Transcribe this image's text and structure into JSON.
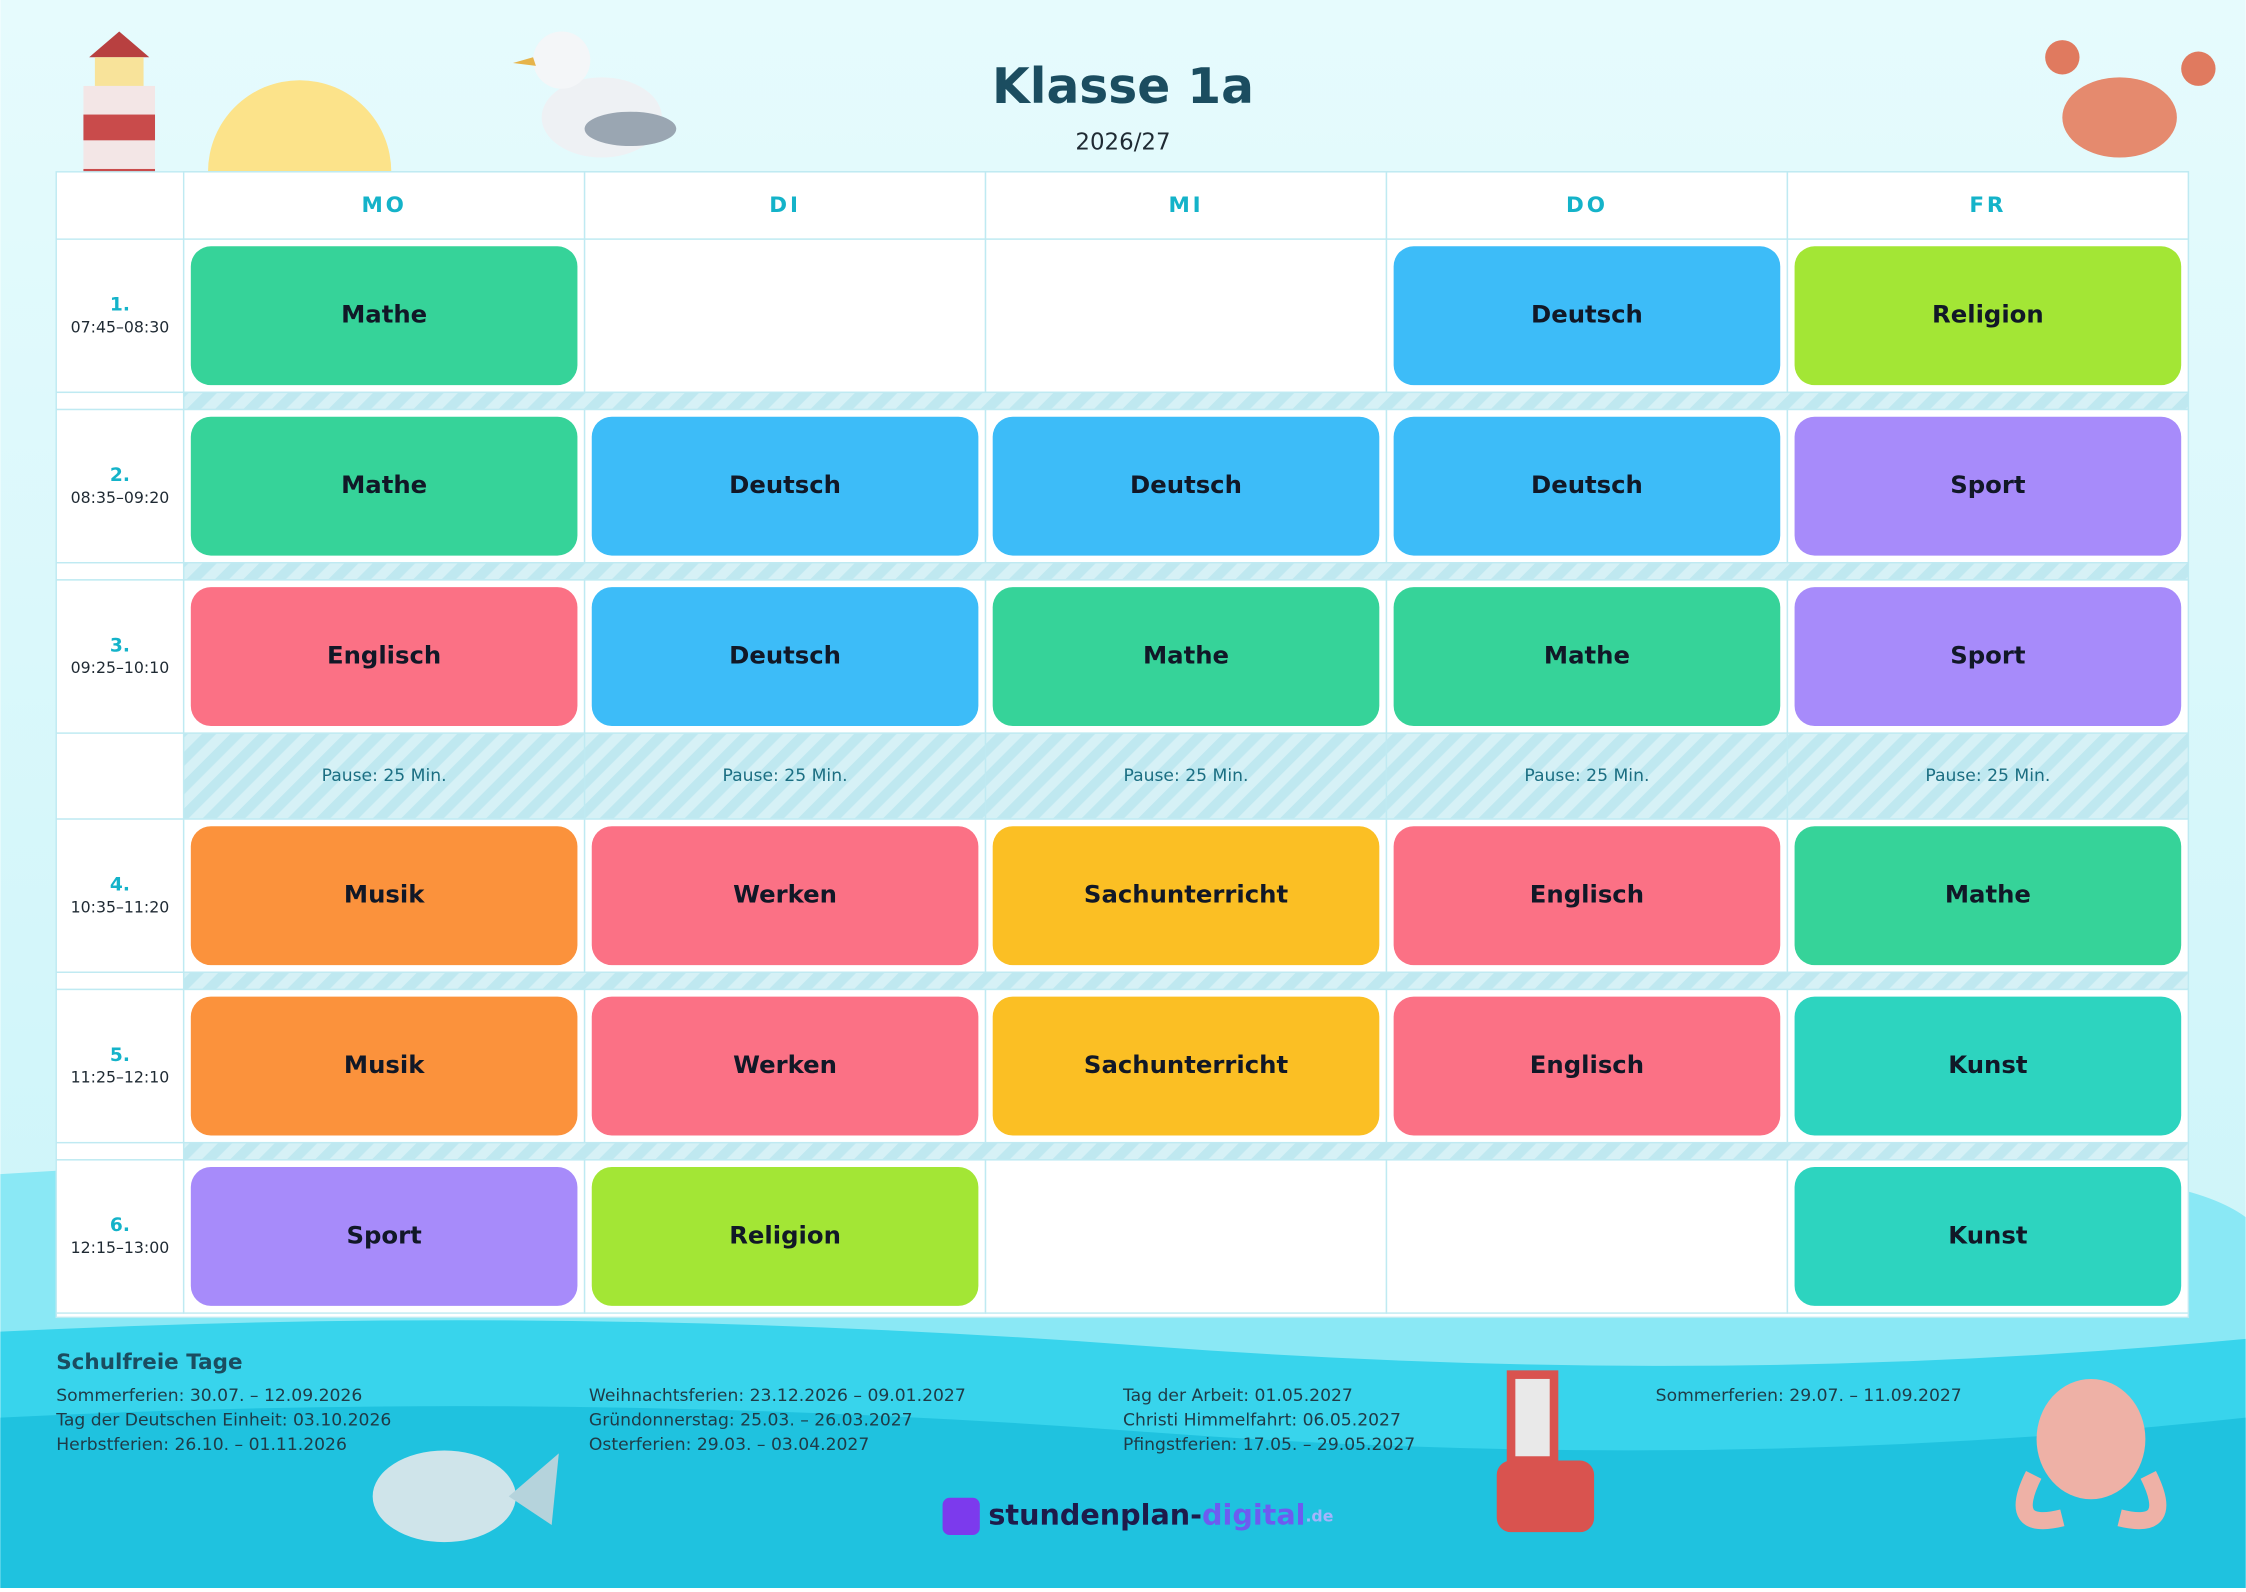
{
  "header": {
    "title": "Klasse 1a",
    "subtitle": "2026/27"
  },
  "days": [
    "MO",
    "DI",
    "MI",
    "DO",
    "FR"
  ],
  "rows": [
    {
      "number": "1.",
      "time": "07:45–08:30",
      "cells": [
        {
          "subject": "Mathe",
          "color": "#36d399"
        },
        null,
        null,
        {
          "subject": "Deutsch",
          "color": "#3dbcf8"
        },
        {
          "subject": "Religion",
          "color": "#a3e635"
        }
      ]
    },
    {
      "number": "2.",
      "time": "08:35–09:20",
      "cells": [
        {
          "subject": "Mathe",
          "color": "#36d399"
        },
        {
          "subject": "Deutsch",
          "color": "#3dbcf8"
        },
        {
          "subject": "Deutsch",
          "color": "#3dbcf8"
        },
        {
          "subject": "Deutsch",
          "color": "#3dbcf8"
        },
        {
          "subject": "Sport",
          "color": "#a78bfa"
        }
      ]
    },
    {
      "number": "3.",
      "time": "09:25–10:10",
      "cells": [
        {
          "subject": "Englisch",
          "color": "#fb7185"
        },
        {
          "subject": "Deutsch",
          "color": "#3dbcf8"
        },
        {
          "subject": "Mathe",
          "color": "#36d399"
        },
        {
          "subject": "Mathe",
          "color": "#36d399"
        },
        {
          "subject": "Sport",
          "color": "#a78bfa"
        }
      ]
    },
    {
      "pause": [
        "Pause: 25 Min.",
        "Pause: 25 Min.",
        "Pause: 25 Min.",
        "Pause: 25 Min.",
        "Pause: 25 Min."
      ]
    },
    {
      "number": "4.",
      "time": "10:35–11:20",
      "cells": [
        {
          "subject": "Musik",
          "color": "#fb923c"
        },
        {
          "subject": "Werken",
          "color": "#fb7185"
        },
        {
          "subject": "Sachunterricht",
          "color": "#fbbf24"
        },
        {
          "subject": "Englisch",
          "color": "#fb7185"
        },
        {
          "subject": "Mathe",
          "color": "#36d399"
        }
      ]
    },
    {
      "number": "5.",
      "time": "11:25–12:10",
      "cells": [
        {
          "subject": "Musik",
          "color": "#fb923c"
        },
        {
          "subject": "Werken",
          "color": "#fb7185"
        },
        {
          "subject": "Sachunterricht",
          "color": "#fbbf24"
        },
        {
          "subject": "Englisch",
          "color": "#fb7185"
        },
        {
          "subject": "Kunst",
          "color": "#2dd4bf"
        }
      ]
    },
    {
      "number": "6.",
      "time": "12:15–13:00",
      "cells": [
        {
          "subject": "Sport",
          "color": "#a78bfa"
        },
        {
          "subject": "Religion",
          "color": "#a3e635"
        },
        null,
        null,
        {
          "subject": "Kunst",
          "color": "#2dd4bf"
        }
      ]
    }
  ],
  "holidays": {
    "title": "Schulfreie Tage",
    "columns": [
      [
        "Sommerferien: 30.07. – 12.09.2026",
        "Tag der Deutschen Einheit: 03.10.2026",
        "Herbstferien: 26.10. – 01.11.2026"
      ],
      [
        "Weihnachtsferien: 23.12.2026 – 09.01.2027",
        "Gründonnerstag: 25.03. – 26.03.2027",
        "Osterferien: 29.03. – 03.04.2027"
      ],
      [
        "Tag der Arbeit: 01.05.2027",
        "Christi Himmelfahrt: 06.05.2027",
        "Pfingstferien: 17.05. – 29.05.2027"
      ],
      [
        "Sommerferien: 29.07. – 11.09.2027"
      ]
    ]
  },
  "logo": [
    "stundenplan-",
    "digital",
    ".de"
  ]
}
